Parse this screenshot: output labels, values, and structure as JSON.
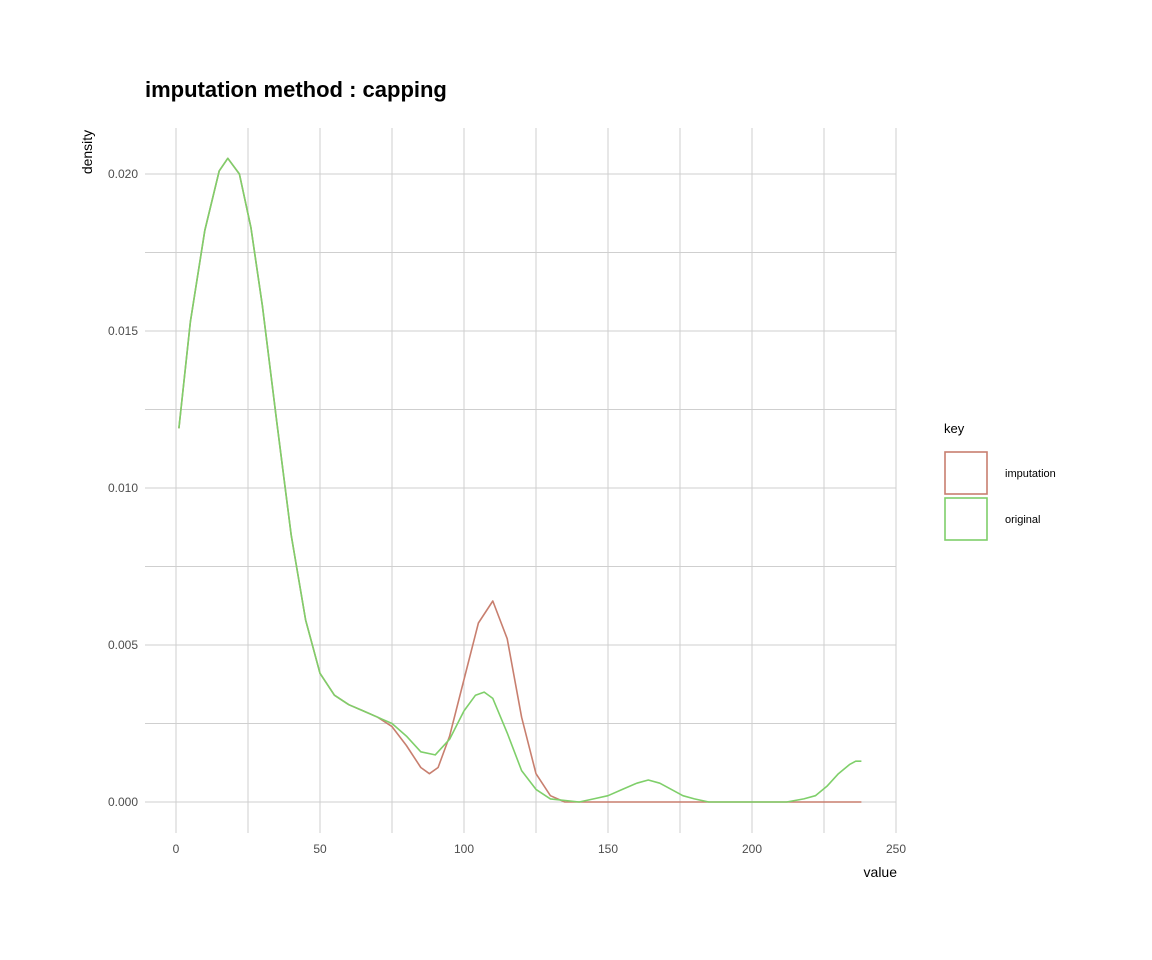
{
  "chart_data": {
    "type": "line",
    "title": "imputation method : capping",
    "xlabel": "value",
    "ylabel": "density",
    "xlim": [
      -5,
      250
    ],
    "ylim": [
      -0.001,
      0.0215
    ],
    "x_ticks": [
      0,
      50,
      100,
      150,
      200,
      250
    ],
    "x_tick_labels": [
      "0",
      "50",
      "100",
      "150",
      "200",
      "250"
    ],
    "y_ticks": [
      0.0,
      0.005,
      0.01,
      0.015,
      0.02
    ],
    "y_tick_labels": [
      "0.000",
      "0.005",
      "0.010",
      "0.015",
      "0.020"
    ],
    "grid": true,
    "legend": {
      "title": "key",
      "position": "right"
    },
    "series": [
      {
        "name": "imputation",
        "color": "#c87f6f",
        "points": [
          [
            1,
            0.0119
          ],
          [
            5,
            0.0153
          ],
          [
            10,
            0.0182
          ],
          [
            15,
            0.0201
          ],
          [
            18,
            0.0205
          ],
          [
            22,
            0.02
          ],
          [
            26,
            0.0183
          ],
          [
            30,
            0.0158
          ],
          [
            35,
            0.0121
          ],
          [
            40,
            0.0085
          ],
          [
            45,
            0.0058
          ],
          [
            50,
            0.0041
          ],
          [
            55,
            0.0034
          ],
          [
            60,
            0.0031
          ],
          [
            65,
            0.0029
          ],
          [
            70,
            0.0027
          ],
          [
            75,
            0.0024
          ],
          [
            80,
            0.0018
          ],
          [
            85,
            0.0011
          ],
          [
            88,
            0.0009
          ],
          [
            91,
            0.0011
          ],
          [
            95,
            0.0021
          ],
          [
            100,
            0.0039
          ],
          [
            105,
            0.0057
          ],
          [
            110,
            0.0064
          ],
          [
            115,
            0.0052
          ],
          [
            120,
            0.0027
          ],
          [
            125,
            0.0009
          ],
          [
            130,
            0.0002
          ],
          [
            135,
            0.0
          ],
          [
            140,
            0.0
          ],
          [
            160,
            0.0
          ],
          [
            180,
            0.0
          ],
          [
            200,
            0.0
          ],
          [
            220,
            0.0
          ],
          [
            238,
            0.0
          ]
        ]
      },
      {
        "name": "original",
        "color": "#7fcf6a",
        "points": [
          [
            1,
            0.0119
          ],
          [
            5,
            0.0153
          ],
          [
            10,
            0.0182
          ],
          [
            15,
            0.0201
          ],
          [
            18,
            0.0205
          ],
          [
            22,
            0.02
          ],
          [
            26,
            0.0183
          ],
          [
            30,
            0.0158
          ],
          [
            35,
            0.0121
          ],
          [
            40,
            0.0085
          ],
          [
            45,
            0.0058
          ],
          [
            50,
            0.0041
          ],
          [
            55,
            0.0034
          ],
          [
            60,
            0.0031
          ],
          [
            65,
            0.0029
          ],
          [
            70,
            0.0027
          ],
          [
            75,
            0.0025
          ],
          [
            80,
            0.0021
          ],
          [
            85,
            0.0016
          ],
          [
            90,
            0.0015
          ],
          [
            95,
            0.002
          ],
          [
            100,
            0.0029
          ],
          [
            104,
            0.0034
          ],
          [
            107,
            0.0035
          ],
          [
            110,
            0.0033
          ],
          [
            115,
            0.0022
          ],
          [
            120,
            0.001
          ],
          [
            125,
            0.0004
          ],
          [
            130,
            0.0001
          ],
          [
            140,
            0.0
          ],
          [
            145,
            0.0001
          ],
          [
            150,
            0.0002
          ],
          [
            155,
            0.0004
          ],
          [
            160,
            0.0006
          ],
          [
            164,
            0.0007
          ],
          [
            168,
            0.0006
          ],
          [
            172,
            0.0004
          ],
          [
            176,
            0.0002
          ],
          [
            180,
            0.0001
          ],
          [
            185,
            0.0
          ],
          [
            195,
            0.0
          ],
          [
            205,
            0.0
          ],
          [
            212,
            0.0
          ],
          [
            218,
            0.0001
          ],
          [
            222,
            0.0002
          ],
          [
            226,
            0.0005
          ],
          [
            230,
            0.0009
          ],
          [
            234,
            0.0012
          ],
          [
            236,
            0.0013
          ],
          [
            238,
            0.0013
          ]
        ]
      }
    ]
  }
}
